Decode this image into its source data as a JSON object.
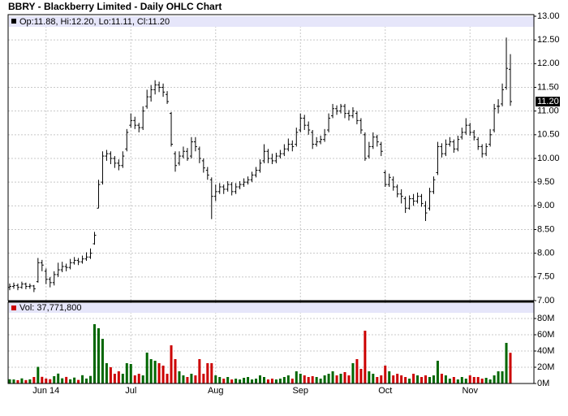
{
  "chart_data": [
    {
      "type": "ohlc",
      "title": "BBRY - Blackberry Limited - Daily OHLC Chart",
      "legend_label": "Op:11.88, Hi:12.20, Lo:11.11, Cl:11.20",
      "last_label": {
        "value": 11.2,
        "label": "11.20"
      },
      "color": "#000000",
      "grid": true,
      "ylim": [
        7,
        13
      ],
      "yticks": [
        {
          "value": 7,
          "label": "7.00"
        },
        {
          "value": 7.5,
          "label": "7.50"
        },
        {
          "value": 8,
          "label": "8.00"
        },
        {
          "value": 8.5,
          "label": "8.50"
        },
        {
          "value": 9,
          "label": "9.00"
        },
        {
          "value": 9.5,
          "label": "9.50"
        },
        {
          "value": 10,
          "label": "10.00"
        },
        {
          "value": 10.5,
          "label": "10.50"
        },
        {
          "value": 11,
          "label": "11.00"
        },
        {
          "value": 11.5,
          "label": "11.50"
        },
        {
          "value": 12,
          "label": "12.00"
        },
        {
          "value": 12.5,
          "label": "12.50"
        },
        {
          "value": 13,
          "label": "13.00"
        }
      ],
      "open": [
        7.28,
        7.3,
        7.32,
        7.28,
        7.35,
        7.3,
        7.31,
        7.4,
        7.8,
        7.62,
        7.45,
        7.38,
        7.55,
        7.65,
        7.72,
        7.7,
        7.8,
        7.85,
        7.82,
        7.88,
        7.92,
        8.2,
        8.95,
        9.5,
        10.05,
        10.1,
        10.0,
        9.9,
        9.85,
        10.2,
        10.7,
        10.8,
        10.7,
        10.65,
        11.1,
        11.3,
        11.45,
        11.55,
        11.5,
        11.35,
        10.95,
        10.1,
        9.9,
        10.05,
        10.15,
        10.05,
        10.35,
        10.2,
        9.95,
        9.75,
        9.55,
        9.2,
        9.3,
        9.4,
        9.35,
        9.45,
        9.3,
        9.4,
        9.45,
        9.5,
        9.55,
        9.65,
        9.75,
        9.95,
        10.15,
        10.0,
        9.95,
        10.05,
        10.1,
        10.2,
        10.3,
        10.3,
        10.6,
        10.85,
        10.7,
        10.55,
        10.3,
        10.35,
        10.4,
        10.6,
        10.9,
        11.05,
        11.0,
        11.1,
        10.95,
        10.9,
        10.95,
        10.8,
        10.5,
        10.05,
        10.25,
        10.45,
        10.3,
        9.7,
        9.45,
        9.55,
        9.4,
        9.25,
        9.15,
        8.95,
        9.15,
        9.1,
        9.2,
        9.0,
        8.95,
        9.3,
        9.7,
        10.25,
        10.1,
        10.3,
        10.35,
        10.2,
        10.45,
        10.55,
        10.7,
        10.55,
        10.4,
        10.25,
        10.1,
        10.3,
        10.6,
        11.1,
        11.15,
        11.5,
        11.88
      ],
      "high": [
        7.36,
        7.38,
        7.36,
        7.4,
        7.38,
        7.36,
        7.33,
        7.9,
        7.86,
        7.68,
        7.5,
        7.62,
        7.8,
        7.82,
        7.78,
        7.88,
        7.92,
        7.9,
        7.95,
        8.02,
        8.1,
        8.45,
        9.55,
        10.15,
        10.18,
        10.15,
        10.05,
        9.98,
        10.15,
        10.62,
        10.95,
        10.88,
        10.75,
        11.1,
        11.45,
        11.55,
        11.65,
        11.62,
        11.58,
        11.42,
        10.98,
        10.15,
        10.15,
        10.25,
        10.22,
        10.45,
        10.45,
        10.25,
        10.0,
        9.82,
        9.6,
        9.45,
        9.48,
        9.45,
        9.52,
        9.5,
        9.48,
        9.52,
        9.58,
        9.62,
        9.72,
        9.82,
        9.98,
        10.3,
        10.2,
        10.1,
        10.12,
        10.18,
        10.3,
        10.42,
        10.38,
        10.65,
        10.95,
        10.92,
        10.78,
        10.6,
        10.45,
        10.48,
        10.62,
        10.95,
        11.15,
        11.12,
        11.15,
        11.15,
        11.02,
        11.08,
        11.0,
        10.85,
        10.55,
        10.35,
        10.55,
        10.5,
        10.35,
        9.75,
        9.68,
        9.62,
        9.45,
        9.35,
        9.2,
        9.22,
        9.25,
        9.28,
        9.25,
        9.1,
        9.38,
        9.62,
        10.35,
        10.32,
        10.4,
        10.45,
        10.4,
        10.48,
        10.65,
        10.85,
        10.75,
        10.6,
        10.45,
        10.3,
        10.32,
        10.62,
        11.15,
        11.25,
        11.58,
        12.55,
        12.2
      ],
      "low": [
        7.22,
        7.25,
        7.22,
        7.25,
        7.24,
        7.25,
        7.18,
        7.38,
        7.62,
        7.35,
        7.28,
        7.32,
        7.5,
        7.6,
        7.62,
        7.66,
        7.76,
        7.75,
        7.78,
        7.84,
        7.88,
        8.18,
        8.95,
        9.45,
        9.95,
        9.88,
        9.8,
        9.75,
        9.8,
        10.15,
        10.65,
        10.62,
        10.55,
        10.6,
        11.05,
        11.2,
        11.35,
        11.4,
        11.3,
        11.15,
        10.25,
        9.72,
        9.85,
        10.0,
        9.95,
        10.0,
        10.15,
        9.9,
        9.7,
        9.55,
        8.72,
        9.1,
        9.25,
        9.25,
        9.3,
        9.22,
        9.25,
        9.35,
        9.4,
        9.45,
        9.5,
        9.6,
        9.7,
        9.9,
        9.9,
        9.88,
        9.9,
        10.0,
        10.05,
        10.15,
        10.15,
        10.25,
        10.55,
        10.6,
        10.5,
        10.2,
        10.25,
        10.3,
        10.35,
        10.55,
        10.85,
        10.92,
        10.95,
        10.85,
        10.8,
        10.85,
        10.72,
        10.52,
        9.95,
        10.0,
        10.2,
        10.25,
        10.05,
        9.4,
        9.4,
        9.32,
        9.18,
        9.05,
        8.85,
        8.92,
        9.0,
        9.05,
        8.98,
        8.68,
        8.9,
        9.25,
        9.65,
        10.02,
        10.05,
        10.25,
        10.12,
        10.15,
        10.4,
        10.5,
        10.48,
        10.38,
        10.18,
        10.02,
        10.05,
        10.25,
        10.55,
        10.95,
        11.1,
        11.45,
        11.11
      ],
      "close": [
        7.3,
        7.32,
        7.28,
        7.35,
        7.3,
        7.31,
        7.25,
        7.8,
        7.75,
        7.45,
        7.38,
        7.55,
        7.65,
        7.72,
        7.7,
        7.8,
        7.85,
        7.82,
        7.88,
        7.92,
        8.0,
        8.38,
        9.45,
        10.05,
        10.1,
        10.0,
        9.9,
        9.85,
        10.05,
        10.55,
        10.8,
        10.7,
        10.65,
        11.0,
        11.3,
        11.45,
        11.55,
        11.5,
        11.4,
        11.2,
        10.3,
        9.85,
        10.05,
        10.15,
        10.0,
        10.35,
        10.25,
        10.0,
        9.8,
        9.65,
        9.2,
        9.3,
        9.4,
        9.35,
        9.45,
        9.3,
        9.4,
        9.45,
        9.5,
        9.55,
        9.65,
        9.75,
        9.9,
        10.15,
        10.0,
        9.95,
        10.05,
        10.1,
        10.2,
        10.3,
        10.25,
        10.55,
        10.85,
        10.7,
        10.6,
        10.3,
        10.35,
        10.4,
        10.5,
        10.85,
        11.05,
        11.0,
        11.1,
        10.95,
        10.9,
        11.0,
        10.8,
        10.6,
        10.0,
        10.25,
        10.45,
        10.35,
        10.15,
        9.45,
        9.6,
        9.4,
        9.25,
        9.2,
        8.95,
        9.15,
        9.1,
        9.2,
        9.05,
        8.85,
        9.3,
        9.55,
        10.25,
        10.1,
        10.3,
        10.35,
        10.2,
        10.4,
        10.55,
        10.7,
        10.55,
        10.45,
        10.25,
        10.1,
        10.25,
        10.5,
        11.05,
        11.1,
        11.45,
        11.9,
        11.2
      ]
    },
    {
      "type": "volume",
      "legend_label": "Vol: 37,771,800",
      "up_color": "#006600",
      "down_color": "#cc0000",
      "grid": true,
      "ylim": [
        0,
        100000000
      ],
      "yticks": [
        {
          "value": 0,
          "label": "0M"
        },
        {
          "value": 20000000,
          "label": "20M"
        },
        {
          "value": 40000000,
          "label": "40M"
        },
        {
          "value": 60000000,
          "label": "60M"
        },
        {
          "value": 80000000,
          "label": "80M"
        }
      ],
      "categories": [
        null,
        null,
        null,
        null,
        null,
        null,
        null,
        null,
        null,
        "Jun 14",
        null,
        null,
        null,
        null,
        null,
        null,
        null,
        null,
        null,
        null,
        null,
        null,
        null,
        null,
        null,
        null,
        null,
        null,
        null,
        null,
        "Jul",
        null,
        null,
        null,
        null,
        null,
        null,
        null,
        null,
        null,
        null,
        null,
        null,
        null,
        null,
        null,
        null,
        null,
        null,
        null,
        null,
        "Aug",
        null,
        null,
        null,
        null,
        null,
        null,
        null,
        null,
        null,
        null,
        null,
        null,
        null,
        null,
        null,
        null,
        null,
        null,
        null,
        null,
        "Sep",
        null,
        null,
        null,
        null,
        null,
        null,
        null,
        null,
        null,
        null,
        null,
        null,
        null,
        null,
        null,
        null,
        null,
        null,
        null,
        null,
        "Oct",
        null,
        null,
        null,
        null,
        null,
        null,
        null,
        null,
        null,
        null,
        null,
        null,
        null,
        null,
        null,
        null,
        null,
        null,
        null,
        null,
        "Nov",
        null,
        null,
        null,
        null,
        null,
        null,
        null,
        null,
        null,
        null
      ],
      "values": [
        5200000,
        5000000,
        4100000,
        6300000,
        4200000,
        5100000,
        8000000,
        20500000,
        8200000,
        6100000,
        5300000,
        9000000,
        12200000,
        6400000,
        8100000,
        5200000,
        7300000,
        4400000,
        10200000,
        6100000,
        9300000,
        73000000,
        68000000,
        55000000,
        25000000,
        20000000,
        12000000,
        15000000,
        12000000,
        25000000,
        24000000,
        10000000,
        12000000,
        10000000,
        38000000,
        30000000,
        28000000,
        25000000,
        22000000,
        12000000,
        47000000,
        30000000,
        15000000,
        10000000,
        8000000,
        12000000,
        10000000,
        30000000,
        12000000,
        25000000,
        25000000,
        10000000,
        8000000,
        6000000,
        8000000,
        5000000,
        6000000,
        5000000,
        7000000,
        8000000,
        5000000,
        6000000,
        10000000,
        8000000,
        5000000,
        6000000,
        5000000,
        6000000,
        8000000,
        10000000,
        6000000,
        15000000,
        12000000,
        10000000,
        8000000,
        9000000,
        8000000,
        6000000,
        10000000,
        12000000,
        15000000,
        10000000,
        12000000,
        14000000,
        10000000,
        25000000,
        30000000,
        18000000,
        65000000,
        15000000,
        12000000,
        8000000,
        10000000,
        22000000,
        15000000,
        10000000,
        12000000,
        10000000,
        8000000,
        6000000,
        12000000,
        10000000,
        8000000,
        10000000,
        8000000,
        10000000,
        28000000,
        12000000,
        10000000,
        6000000,
        8000000,
        5000000,
        8000000,
        6000000,
        10000000,
        8000000,
        8000000,
        6000000,
        7000000,
        5000000,
        10000000,
        15000000,
        15000000,
        50000000,
        37771800
      ]
    }
  ]
}
